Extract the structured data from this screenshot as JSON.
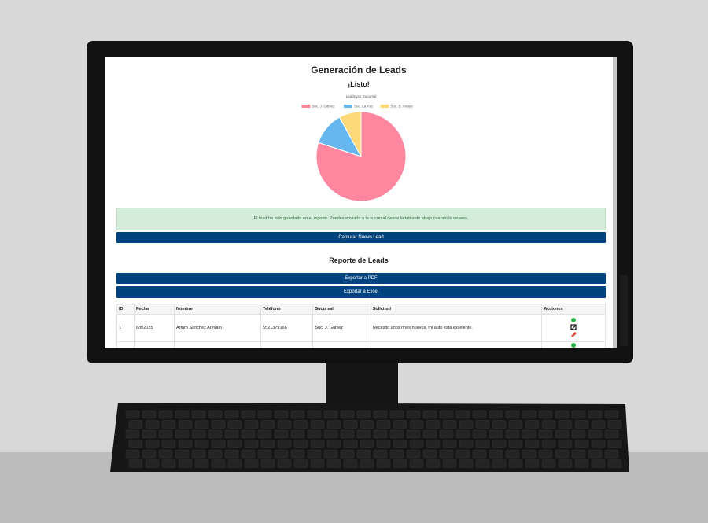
{
  "page": {
    "title": "Generación de Leads",
    "status": "¡Listo!"
  },
  "chart_data": {
    "type": "pie",
    "title": "Leads por Sucursal",
    "categories": [
      "Suc. J. Gálvez",
      "Suc. La Paz",
      "Suc. B. Anaya"
    ],
    "values": [
      80,
      12,
      8
    ],
    "colors": [
      "#ff869f",
      "#66b6ef",
      "#ffd878"
    ]
  },
  "alert": "El lead ha sido guardado en el reporte. Puedes enviarlo a la sucursal desde la tabla de abajo cuando lo desees.",
  "capture_button": "Capturar Nuevo Lead",
  "report": {
    "title": "Reporte de Leads",
    "export_pdf": "Exportar a PDF",
    "export_excel": "Exportar a Excel"
  },
  "table": {
    "headers": [
      "ID",
      "Fecha",
      "Nombre",
      "Teléfono",
      "Sucursal",
      "Solicitud",
      "Acciones"
    ],
    "rows": [
      [
        "1",
        "6/8/2025",
        "Arturo Sanchez Arevalo",
        "5521379166",
        "Suc. J. Gálvez",
        "Necesito unos rines nuevos, mi auto está excelente."
      ]
    ]
  }
}
